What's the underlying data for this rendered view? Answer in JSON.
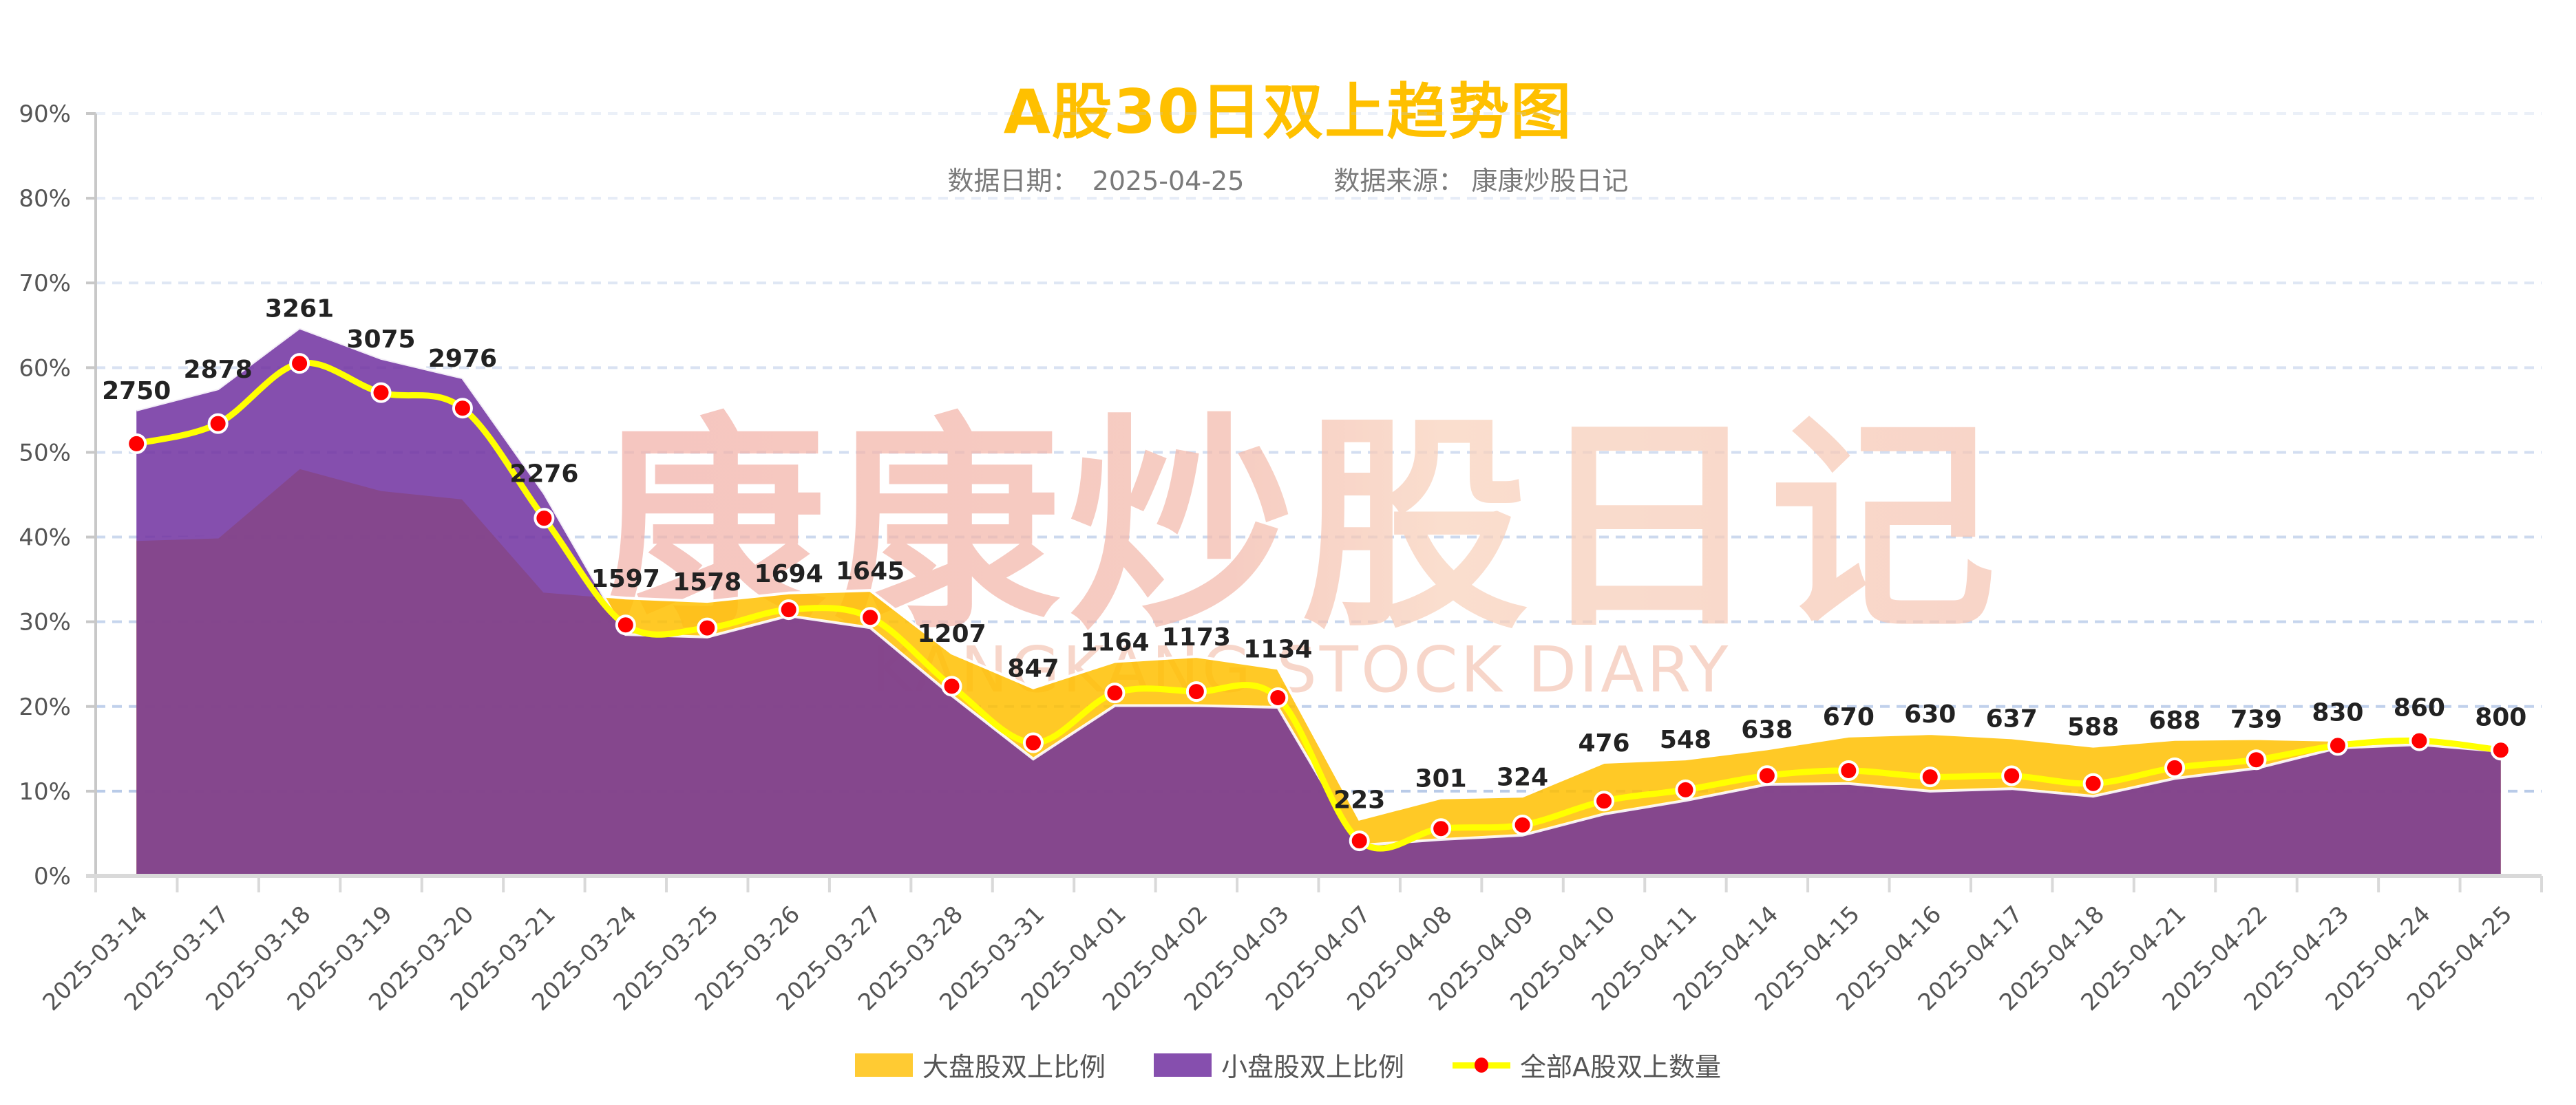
{
  "header": {
    "title": "A股30日双上趋势图",
    "date_label": "数据日期：",
    "date_value": "2025-04-25",
    "source_label": "数据来源：",
    "source_value": "康康炒股日记"
  },
  "watermark": {
    "cn_text": "康康炒股日记",
    "en_text": "KANGKANG STOCK DIARY"
  },
  "legend": [
    {
      "label": "大盘股双上比例",
      "color": "#FFC000",
      "type": "area"
    },
    {
      "label": "小盘股双上比例",
      "color": "#7030A0",
      "type": "area"
    },
    {
      "label": "全部A股双上数量",
      "color": "#FFFF00",
      "marker_color": "#FF0000",
      "type": "line"
    }
  ],
  "colors": {
    "large_cap": "#FFC000",
    "small_cap": "#7030A0",
    "line": "#FFFF00",
    "marker": "#FF0000",
    "title": "#FFC000",
    "grid": "#B4C7E7",
    "axis": "#C8C8C8",
    "tick_text": "#555555",
    "label_text": "#222222"
  },
  "chart_data": {
    "type": "area",
    "title": "A股30日双上趋势图",
    "subtitle": "数据日期：2025-04-25    数据来源：康康炒股日记",
    "xlabel": "",
    "ylabel": "",
    "ylim": [
      0,
      90
    ],
    "yticks": [
      "0%",
      "10%",
      "20%",
      "30%",
      "40%",
      "50%",
      "60%",
      "70%",
      "80%",
      "90%"
    ],
    "grid": true,
    "legend_position": "bottom",
    "categories": [
      "2025-03-14",
      "2025-03-17",
      "2025-03-18",
      "2025-03-19",
      "2025-03-20",
      "2025-03-21",
      "2025-03-24",
      "2025-03-25",
      "2025-03-26",
      "2025-03-27",
      "2025-03-28",
      "2025-03-31",
      "2025-04-01",
      "2025-04-02",
      "2025-04-03",
      "2025-04-07",
      "2025-04-08",
      "2025-04-09",
      "2025-04-10",
      "2025-04-11",
      "2025-04-14",
      "2025-04-15",
      "2025-04-16",
      "2025-04-17",
      "2025-04-18",
      "2025-04-21",
      "2025-04-22",
      "2025-04-23",
      "2025-04-24",
      "2025-04-25"
    ],
    "series": [
      {
        "name": "大盘股双上比例",
        "type": "area",
        "unit": "%",
        "values": [
          39.7,
          40.0,
          48.2,
          45.6,
          44.6,
          33.6,
          32.8,
          32.4,
          33.4,
          33.7,
          26.3,
          22.2,
          25.3,
          25.9,
          24.5,
          6.7,
          9.2,
          9.4,
          13.4,
          13.8,
          15.0,
          16.5,
          16.8,
          16.3,
          15.3,
          16.1,
          16.2,
          16.0,
          16.4,
          15.1
        ]
      },
      {
        "name": "小盘股双上比例",
        "type": "area",
        "unit": "%",
        "values": [
          55.0,
          57.5,
          64.7,
          61.1,
          58.8,
          45.2,
          28.5,
          28.2,
          30.7,
          29.3,
          21.3,
          13.8,
          20.1,
          20.1,
          19.9,
          3.6,
          4.3,
          4.8,
          7.3,
          8.9,
          10.8,
          10.9,
          10.0,
          10.3,
          9.4,
          11.5,
          12.7,
          15.1,
          15.5,
          14.7
        ]
      },
      {
        "name": "全部A股双上数量",
        "type": "line",
        "unit": "count",
        "values": [
          2750,
          2878,
          3261,
          3075,
          2976,
          2276,
          1597,
          1578,
          1694,
          1645,
          1207,
          847,
          1164,
          1173,
          1134,
          223,
          301,
          324,
          476,
          548,
          638,
          670,
          630,
          637,
          588,
          688,
          739,
          830,
          860,
          800
        ]
      }
    ],
    "line_scale_total": 5390
  }
}
